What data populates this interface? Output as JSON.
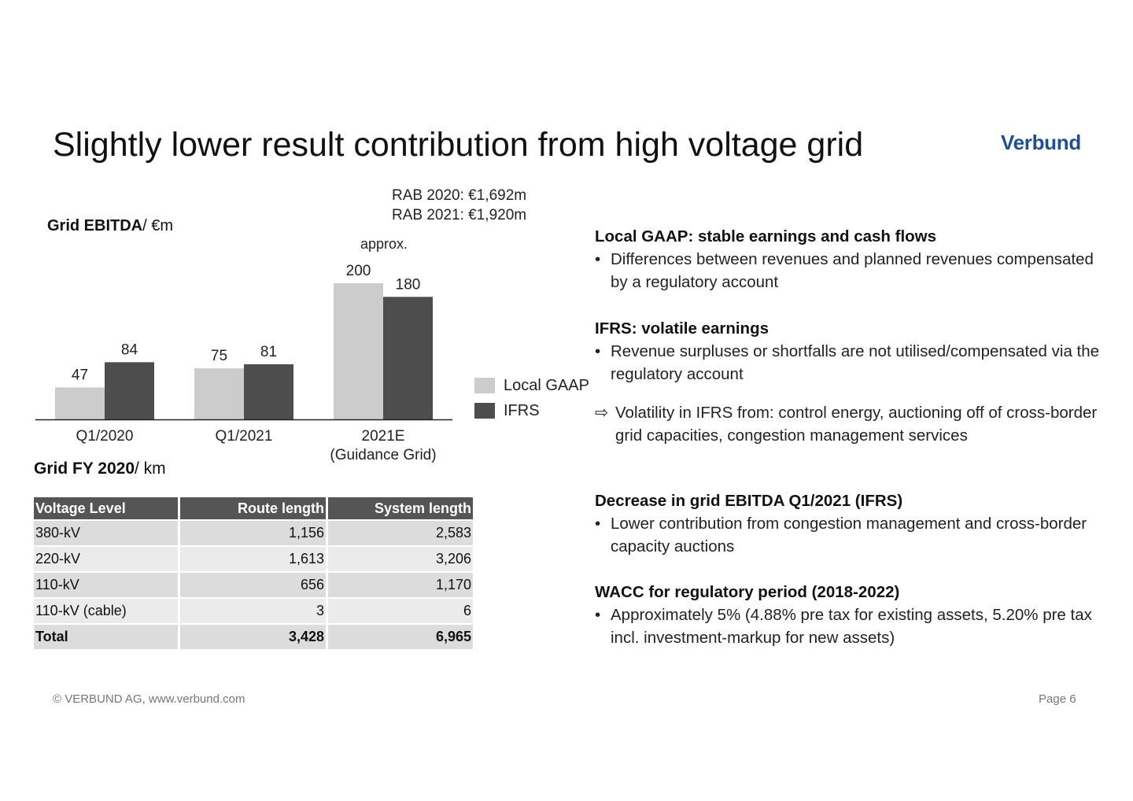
{
  "page": {
    "title": "Slightly lower result contribution from high voltage grid",
    "logo_text": "Verbund"
  },
  "rab": {
    "line1": "RAB 2020: €1,692m",
    "line2": "RAB 2021: €1,920m"
  },
  "chart_header": {
    "bold": "Grid EBITDA",
    "unit": "/ €m",
    "approx": "approx."
  },
  "chart_data": {
    "type": "bar",
    "categories": [
      "Q1/2020",
      "Q1/2021",
      "2021E"
    ],
    "category_sublabels": [
      "",
      "",
      "(Guidance Grid)"
    ],
    "series": [
      {
        "name": "Local GAAP",
        "values": [
          47,
          75,
          200
        ],
        "color": "#cccccc"
      },
      {
        "name": "IFRS",
        "values": [
          84,
          81,
          180
        ],
        "color": "#4d4d4d"
      }
    ],
    "highlight_category_color": "#1aa3b8",
    "ylim": [
      0,
      200
    ],
    "legend_position": "right",
    "grid": false
  },
  "table_header": {
    "bold": "Grid FY 2020",
    "unit": "/ km"
  },
  "grid_table": {
    "columns": [
      "Voltage Level",
      "Route length",
      "System length"
    ],
    "rows": [
      [
        "380-kV",
        "1,156",
        "2,583"
      ],
      [
        "220-kV",
        "1,613",
        "3,206"
      ],
      [
        "110-kV",
        "656",
        "1,170"
      ],
      [
        "110-kV (cable)",
        "3",
        "6"
      ],
      [
        "Total",
        "3,428",
        "6,965"
      ]
    ]
  },
  "right": {
    "s1": {
      "heading": "Local GAAP: stable earnings and cash flows",
      "bullet": "Differences between revenues and planned revenues compensated by a regulatory account"
    },
    "s2": {
      "heading": "IFRS: volatile earnings",
      "bullet": "Revenue surpluses or shortfalls are not utilised/compensated via the regulatory account"
    },
    "arrow_text": "Volatility in IFRS from: control energy, auctioning off of cross-border grid capacities, congestion management services",
    "s3": {
      "heading": "Decrease in grid EBITDA Q1/2021 (IFRS)",
      "bullet": "Lower contribution from congestion management and cross-border capacity auctions"
    },
    "s4": {
      "heading": "WACC for regulatory period (2018-2022)",
      "bullet": "Approximately 5% (4.88% pre tax for existing assets, 5.20% pre tax incl. investment-markup for new assets)"
    }
  },
  "footer": {
    "left": "© VERBUND AG, www.verbund.com",
    "right": "Page 6"
  }
}
